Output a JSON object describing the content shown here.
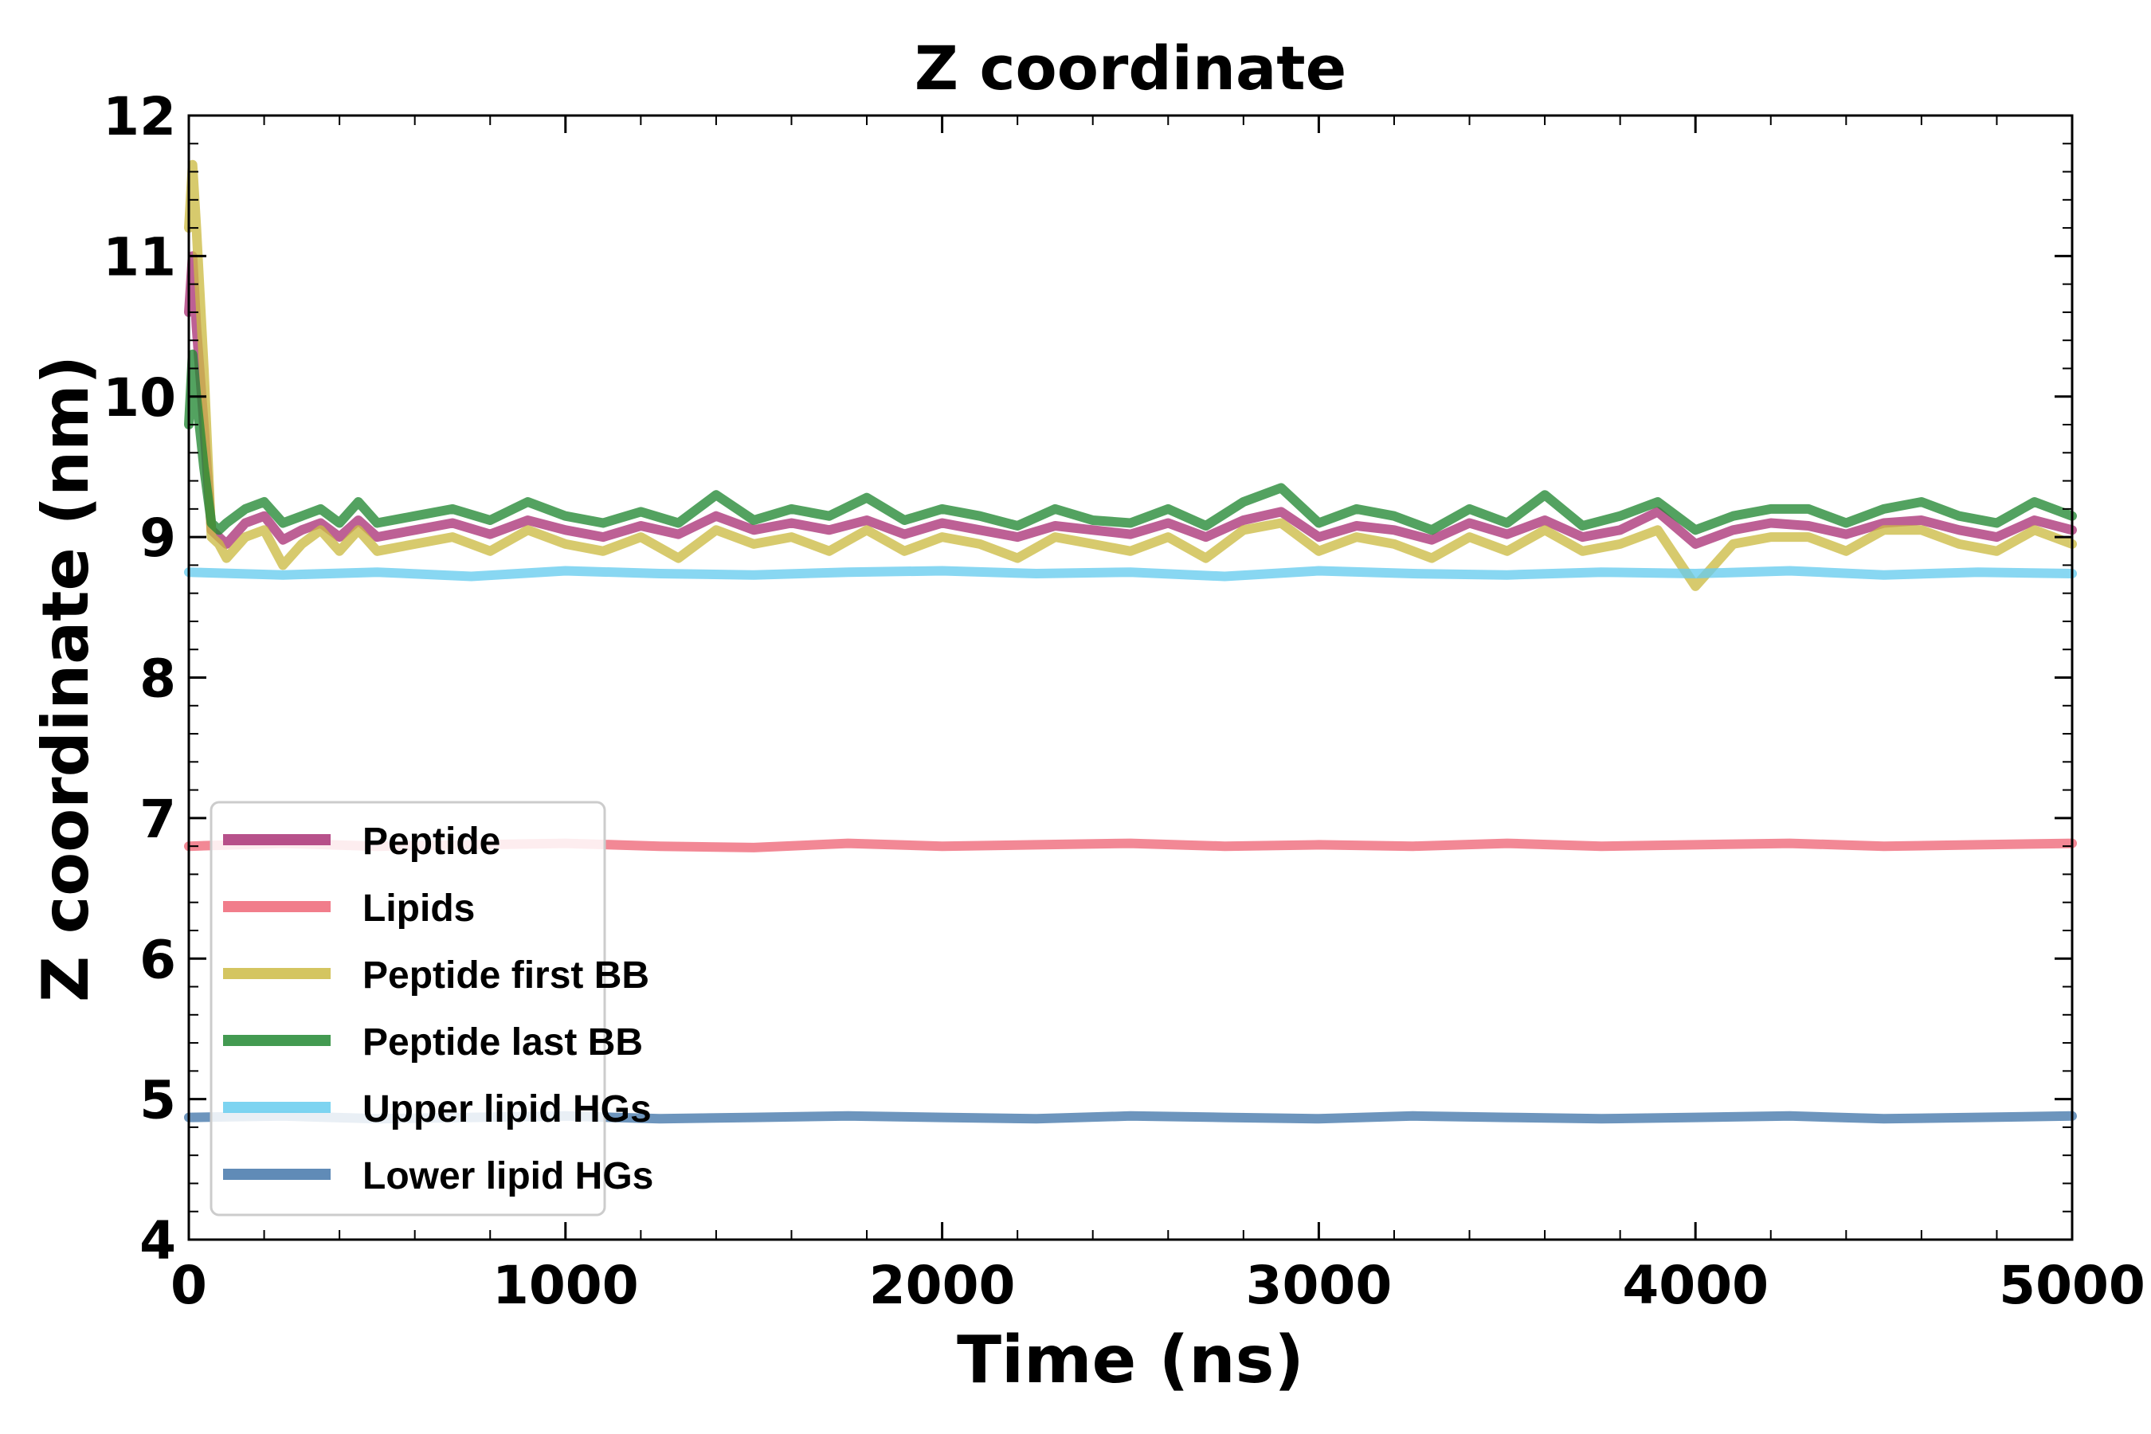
{
  "chart_data": {
    "type": "line",
    "title": "Z coordinate",
    "xlabel": "Time (ns)",
    "ylabel": "Z coordinate (nm)",
    "xlim": [
      0,
      5000
    ],
    "ylim": [
      4,
      12
    ],
    "xticks": [
      0,
      1000,
      2000,
      3000,
      4000,
      5000
    ],
    "xtick_labels": [
      "0",
      "1000",
      "2000",
      "3000",
      "4000",
      "5000"
    ],
    "yticks": [
      4,
      5,
      6,
      7,
      8,
      9,
      10,
      11,
      12
    ],
    "ytick_labels": [
      "4",
      "5",
      "6",
      "7",
      "8",
      "9",
      "10",
      "11",
      "12"
    ],
    "grid": false,
    "legend_position": "lower-left",
    "series": [
      {
        "name": "Peptide",
        "color": "#aa3377",
        "x": [
          0,
          10,
          20,
          40,
          60,
          80,
          100,
          150,
          200,
          250,
          300,
          350,
          400,
          450,
          500,
          600,
          700,
          800,
          900,
          1000,
          1100,
          1200,
          1300,
          1400,
          1500,
          1600,
          1700,
          1800,
          1900,
          2000,
          2100,
          2200,
          2300,
          2400,
          2500,
          2600,
          2700,
          2800,
          2900,
          3000,
          3100,
          3200,
          3300,
          3400,
          3500,
          3600,
          3700,
          3800,
          3900,
          4000,
          4100,
          4200,
          4300,
          4400,
          4500,
          4600,
          4700,
          4800,
          4900,
          5000
        ],
        "values": [
          10.6,
          11.0,
          10.5,
          9.8,
          9.05,
          9.0,
          8.95,
          9.1,
          9.15,
          8.98,
          9.05,
          9.1,
          9.0,
          9.12,
          9.0,
          9.05,
          9.1,
          9.02,
          9.12,
          9.05,
          9.0,
          9.08,
          9.02,
          9.15,
          9.05,
          9.1,
          9.05,
          9.12,
          9.02,
          9.1,
          9.05,
          9.0,
          9.08,
          9.05,
          9.02,
          9.1,
          9.0,
          9.12,
          9.18,
          9.0,
          9.08,
          9.05,
          8.98,
          9.1,
          9.02,
          9.12,
          9.0,
          9.05,
          9.18,
          8.95,
          9.05,
          9.1,
          9.08,
          9.02,
          9.1,
          9.12,
          9.05,
          9.0,
          9.12,
          9.05
        ]
      },
      {
        "name": "Lipids",
        "color": "#ee6677",
        "x": [
          0,
          250,
          500,
          750,
          1000,
          1250,
          1500,
          1750,
          2000,
          2250,
          2500,
          2750,
          3000,
          3250,
          3500,
          3750,
          4000,
          4250,
          4500,
          4750,
          5000
        ],
        "values": [
          6.8,
          6.82,
          6.8,
          6.81,
          6.82,
          6.8,
          6.79,
          6.82,
          6.8,
          6.81,
          6.82,
          6.8,
          6.81,
          6.8,
          6.82,
          6.8,
          6.81,
          6.82,
          6.8,
          6.81,
          6.82
        ]
      },
      {
        "name": "Peptide first BB",
        "color": "#ccbb44",
        "x": [
          0,
          10,
          20,
          40,
          60,
          80,
          100,
          150,
          200,
          250,
          300,
          350,
          400,
          450,
          500,
          600,
          700,
          800,
          900,
          1000,
          1100,
          1200,
          1300,
          1400,
          1500,
          1600,
          1700,
          1800,
          1900,
          2000,
          2100,
          2200,
          2300,
          2400,
          2500,
          2600,
          2700,
          2800,
          2900,
          3000,
          3100,
          3200,
          3300,
          3400,
          3500,
          3600,
          3700,
          3800,
          3900,
          4000,
          4100,
          4200,
          4300,
          4400,
          4500,
          4600,
          4700,
          4800,
          4900,
          5000
        ],
        "values": [
          11.2,
          11.65,
          11.2,
          10.2,
          9.0,
          8.95,
          8.85,
          9.0,
          9.05,
          8.8,
          8.95,
          9.05,
          8.9,
          9.05,
          8.9,
          8.95,
          9.0,
          8.9,
          9.05,
          8.95,
          8.9,
          9.0,
          8.85,
          9.05,
          8.95,
          9.0,
          8.9,
          9.05,
          8.9,
          9.0,
          8.95,
          8.85,
          9.0,
          8.95,
          8.9,
          9.0,
          8.85,
          9.05,
          9.1,
          8.9,
          9.0,
          8.95,
          8.85,
          9.0,
          8.9,
          9.05,
          8.9,
          8.95,
          9.05,
          8.65,
          8.95,
          9.0,
          9.0,
          8.9,
          9.05,
          9.05,
          8.95,
          8.9,
          9.05,
          8.95
        ]
      },
      {
        "name": "Peptide last BB",
        "color": "#228833",
        "x": [
          0,
          10,
          20,
          40,
          60,
          80,
          100,
          150,
          200,
          250,
          300,
          350,
          400,
          450,
          500,
          600,
          700,
          800,
          900,
          1000,
          1100,
          1200,
          1300,
          1400,
          1500,
          1600,
          1700,
          1800,
          1900,
          2000,
          2100,
          2200,
          2300,
          2400,
          2500,
          2600,
          2700,
          2800,
          2900,
          3000,
          3100,
          3200,
          3300,
          3400,
          3500,
          3600,
          3700,
          3800,
          3900,
          4000,
          4100,
          4200,
          4300,
          4400,
          4500,
          4600,
          4700,
          4800,
          4900,
          5000
        ],
        "values": [
          9.8,
          10.3,
          10.0,
          9.5,
          9.1,
          9.05,
          9.1,
          9.2,
          9.25,
          9.1,
          9.15,
          9.2,
          9.1,
          9.25,
          9.1,
          9.15,
          9.2,
          9.12,
          9.25,
          9.15,
          9.1,
          9.18,
          9.1,
          9.3,
          9.12,
          9.2,
          9.15,
          9.28,
          9.12,
          9.2,
          9.15,
          9.08,
          9.2,
          9.12,
          9.1,
          9.2,
          9.08,
          9.25,
          9.35,
          9.1,
          9.2,
          9.15,
          9.05,
          9.2,
          9.1,
          9.3,
          9.08,
          9.15,
          9.25,
          9.05,
          9.15,
          9.2,
          9.2,
          9.1,
          9.2,
          9.25,
          9.15,
          9.1,
          9.25,
          9.15
        ]
      },
      {
        "name": "Upper lipid HGs",
        "color": "#66ccee",
        "x": [
          0,
          250,
          500,
          750,
          1000,
          1250,
          1500,
          1750,
          2000,
          2250,
          2500,
          2750,
          3000,
          3250,
          3500,
          3750,
          4000,
          4250,
          4500,
          4750,
          5000
        ],
        "values": [
          8.75,
          8.73,
          8.75,
          8.72,
          8.76,
          8.74,
          8.73,
          8.75,
          8.76,
          8.74,
          8.75,
          8.72,
          8.76,
          8.74,
          8.73,
          8.75,
          8.74,
          8.76,
          8.73,
          8.75,
          8.74
        ]
      },
      {
        "name": "Lower lipid HGs",
        "color": "#4477aa",
        "x": [
          0,
          250,
          500,
          750,
          1000,
          1250,
          1500,
          1750,
          2000,
          2250,
          2500,
          2750,
          3000,
          3250,
          3500,
          3750,
          4000,
          4250,
          4500,
          4750,
          5000
        ],
        "values": [
          4.87,
          4.88,
          4.86,
          4.87,
          4.88,
          4.86,
          4.87,
          4.88,
          4.87,
          4.86,
          4.88,
          4.87,
          4.86,
          4.88,
          4.87,
          4.86,
          4.87,
          4.88,
          4.86,
          4.87,
          4.88
        ]
      }
    ]
  }
}
